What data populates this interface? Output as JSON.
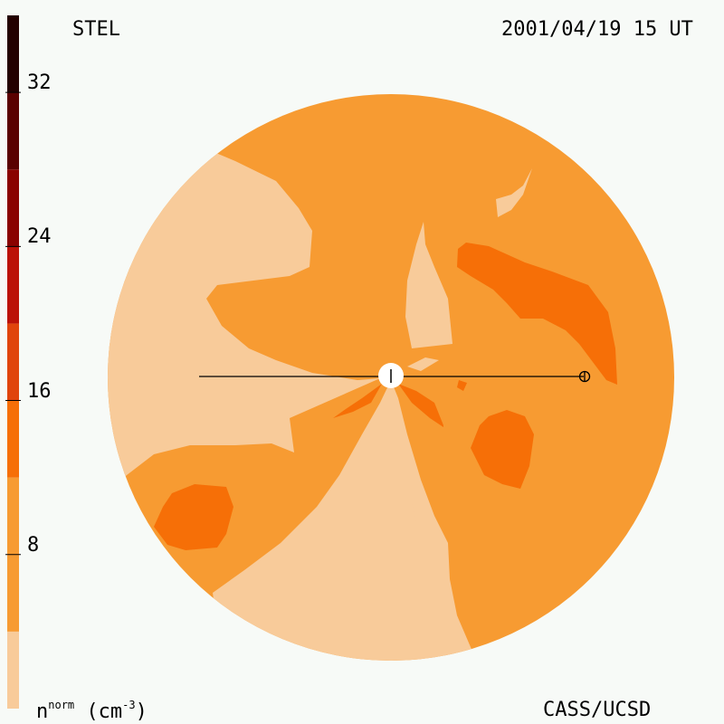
{
  "header": {
    "left": "STEL",
    "right": "2001/04/19 15 UT"
  },
  "footer": {
    "credit": "CASS/UCSD",
    "unit_base": "n",
    "unit_sup": "norm",
    "unit_rest": " (cm",
    "unit_exp": "-3",
    "unit_close": ")"
  },
  "chart_data": {
    "type": "heatmap",
    "colorbar": {
      "ticks": [
        8,
        16,
        24,
        32
      ],
      "tick_labels": [
        "8",
        "16",
        "24",
        "32"
      ],
      "range": [
        0,
        36
      ],
      "levels": [
        {
          "from": 0,
          "to": 4,
          "color": "#f8cb9a"
        },
        {
          "from": 4,
          "to": 12,
          "color": "#f79b32"
        },
        {
          "from": 12,
          "to": 16,
          "color": "#f66f07"
        },
        {
          "from": 16,
          "to": 20,
          "color": "#e0440c"
        },
        {
          "from": 20,
          "to": 24,
          "color": "#bb1208"
        },
        {
          "from": 24,
          "to": 28,
          "color": "#8a0200"
        },
        {
          "from": 28,
          "to": 32,
          "color": "#5a0000"
        },
        {
          "from": 32,
          "to": 36,
          "color": "#230000"
        }
      ]
    },
    "background_color": "#f79b32",
    "low_color": "#f8cb9a",
    "high_color": "#f66f07"
  }
}
